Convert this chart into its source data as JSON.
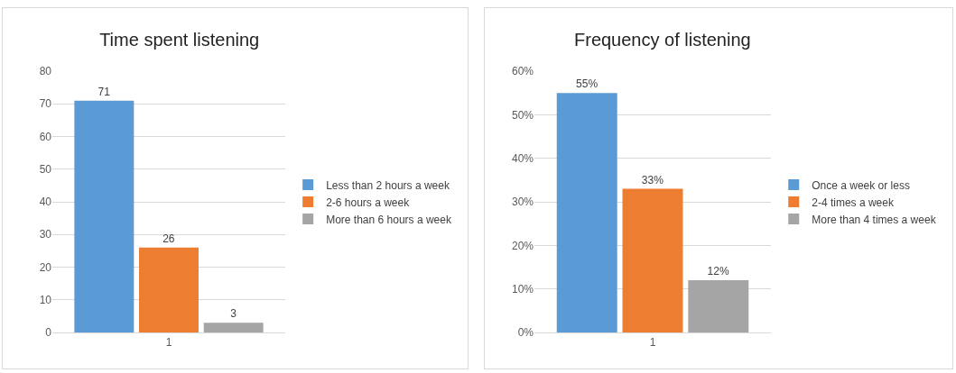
{
  "chart_data": [
    {
      "type": "bar",
      "title": "Time spent listening",
      "categories": [
        null,
        "1",
        null
      ],
      "series": [
        {
          "name": "Less than 2 hours a week",
          "color": "#5b9bd5",
          "values": [
            71,
            null,
            null
          ]
        },
        {
          "name": "2-6 hours a week",
          "color": "#ed7d31",
          "values": [
            null,
            26,
            null
          ]
        },
        {
          "name": "More than 6 hours a week",
          "color": "#a5a5a5",
          "values": [
            null,
            null,
            3
          ]
        }
      ],
      "ylim": [
        0,
        80
      ],
      "yticks": [
        0,
        10,
        20,
        30,
        40,
        50,
        60,
        70,
        80
      ],
      "grid": "y",
      "legend": "right",
      "data_labels": true
    },
    {
      "type": "bar",
      "title": "Frequency of listening",
      "categories": [
        null,
        "1",
        null
      ],
      "series": [
        {
          "name": "Once a week or less",
          "color": "#5b9bd5",
          "values": [
            55,
            null,
            null
          ],
          "value_labels": [
            "55%",
            null,
            null
          ]
        },
        {
          "name": "2-4 times a week",
          "color": "#ed7d31",
          "values": [
            null,
            33,
            null
          ],
          "value_labels": [
            null,
            "33%",
            null
          ]
        },
        {
          "name": "More than 4 times a week",
          "color": "#a5a5a5",
          "values": [
            null,
            null,
            12
          ],
          "value_labels": [
            null,
            null,
            "12%"
          ]
        }
      ],
      "ylim": [
        0,
        60
      ],
      "yticks": [
        {
          "value": 0,
          "label": "0%"
        },
        {
          "value": 10,
          "label": "10%"
        },
        {
          "value": 20,
          "label": "20%"
        },
        {
          "value": 30,
          "label": "30%"
        },
        {
          "value": 40,
          "label": "40%"
        },
        {
          "value": 50,
          "label": "50%"
        },
        {
          "value": 60,
          "label": "60%"
        }
      ],
      "grid": "y",
      "legend": "right"
    }
  ]
}
